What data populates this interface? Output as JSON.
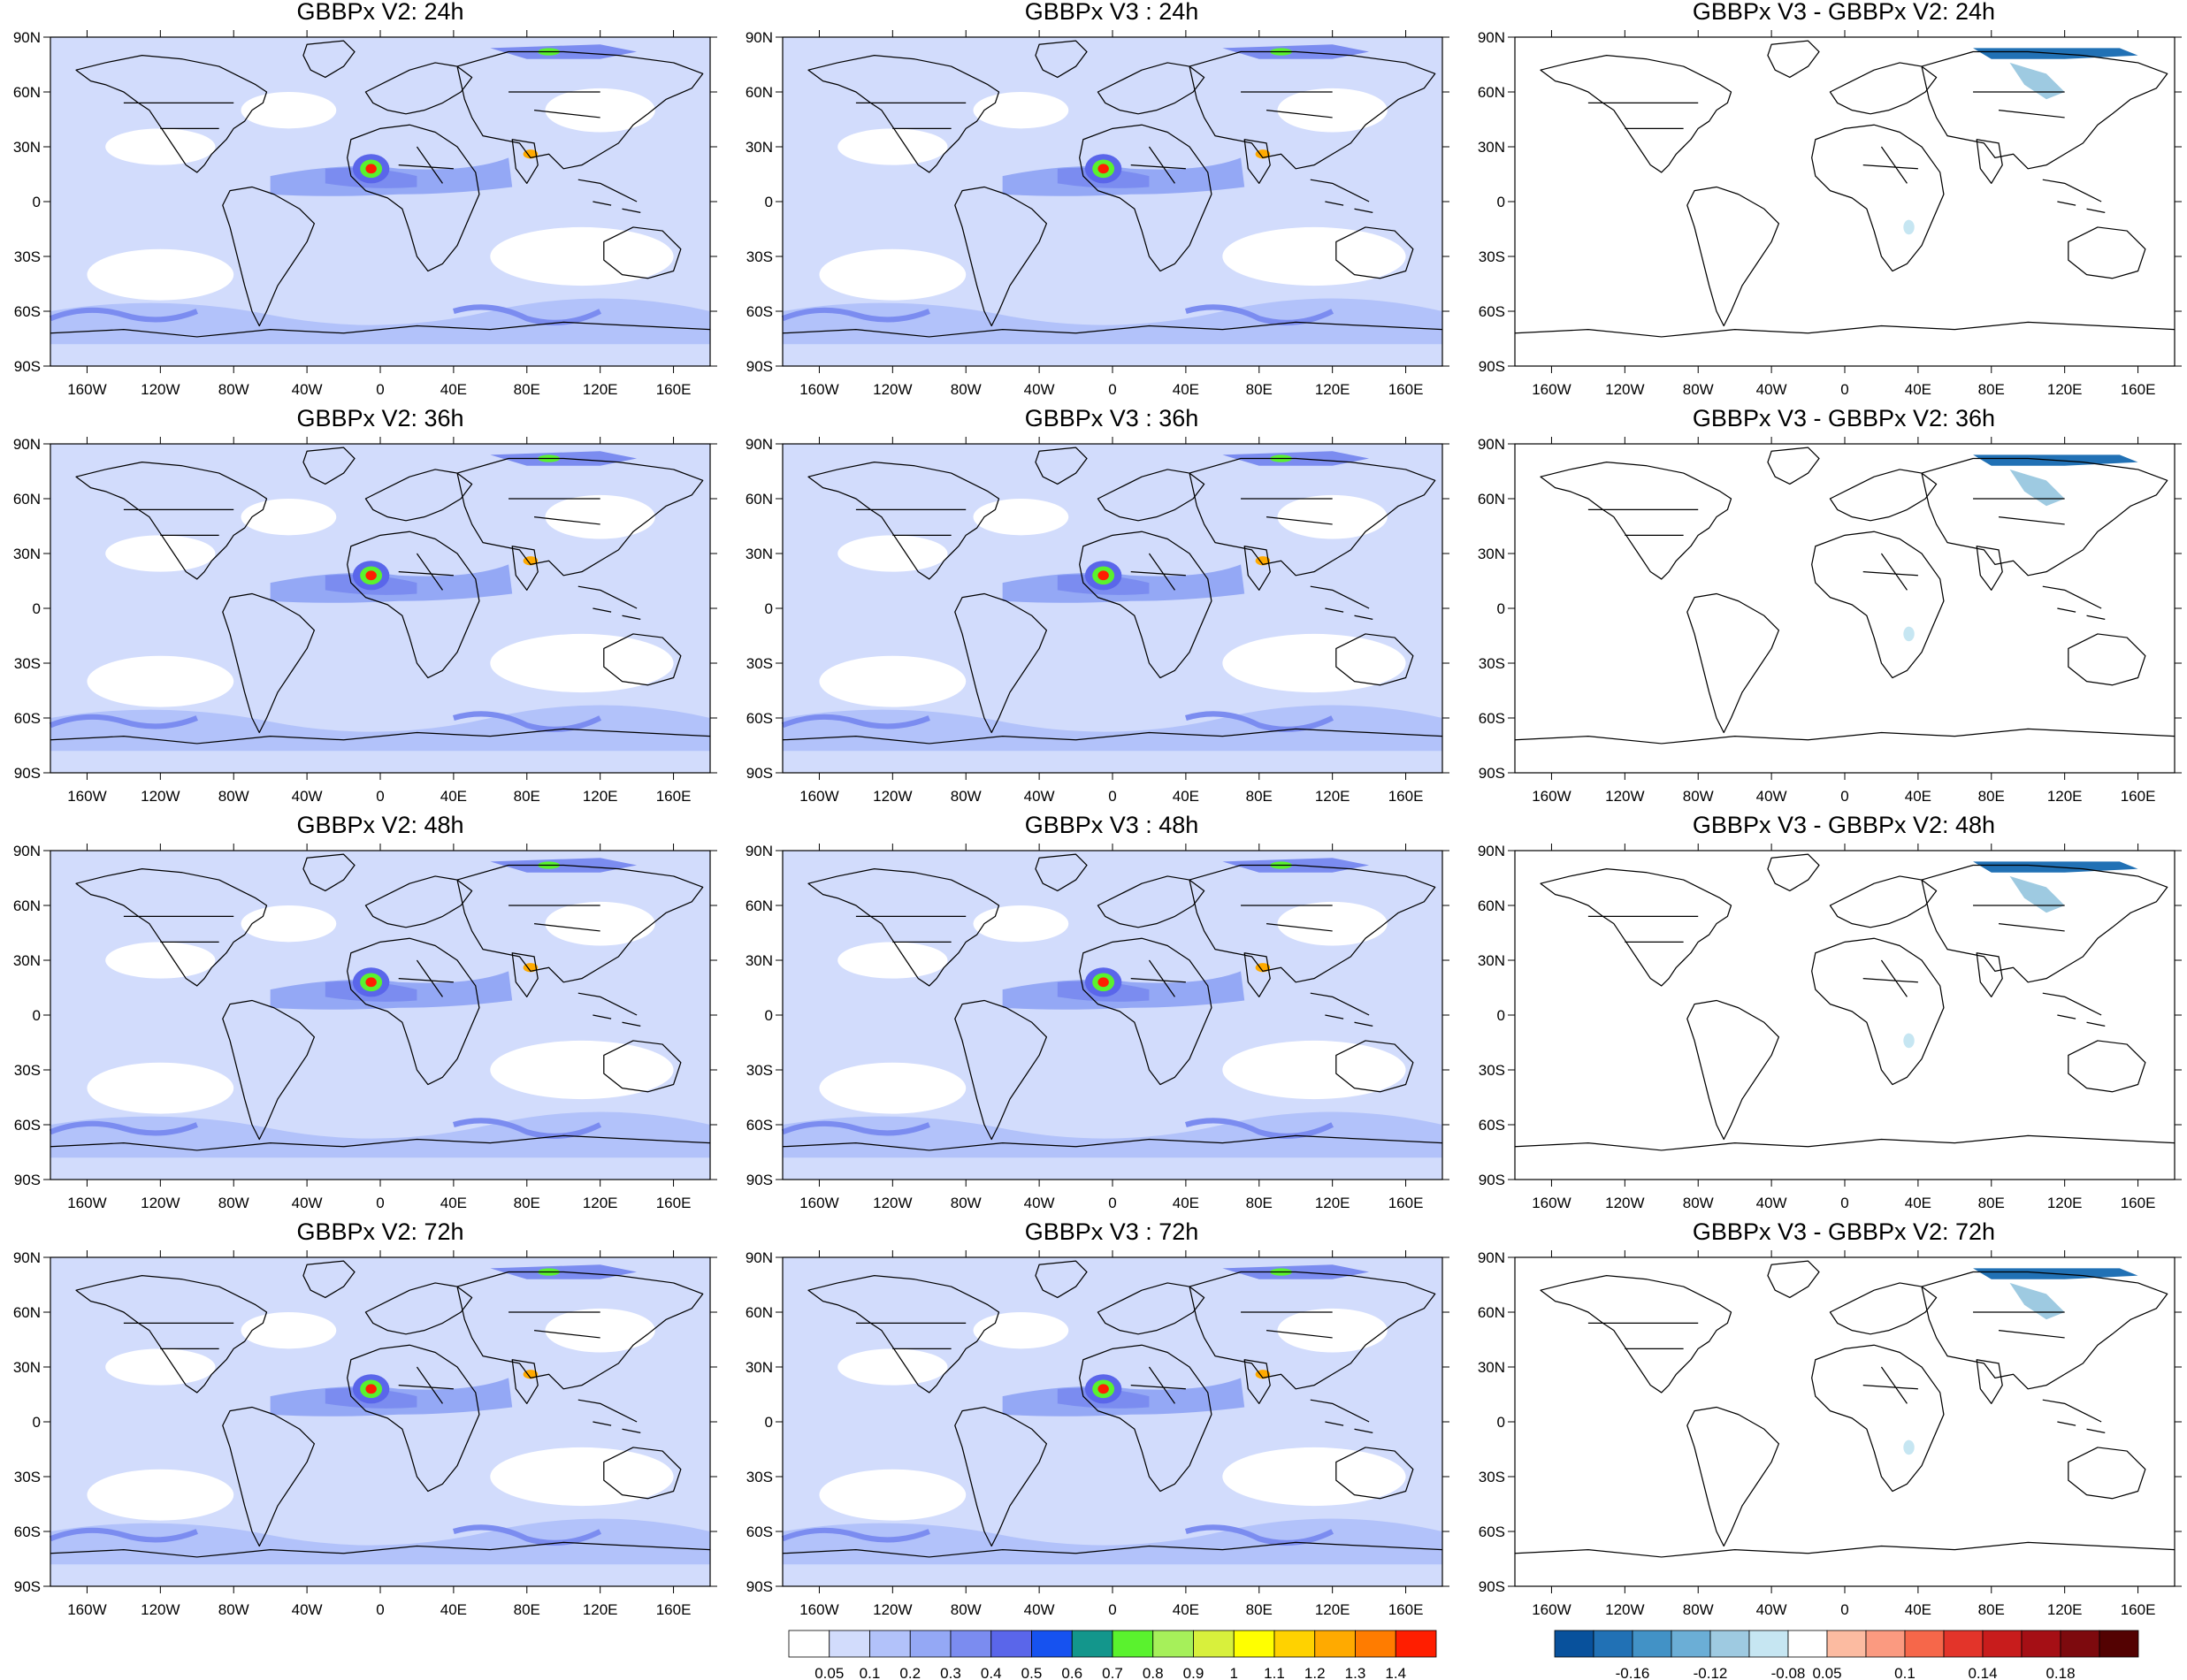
{
  "figure": {
    "columns": [
      {
        "id": "v2",
        "kind": "field"
      },
      {
        "id": "v3",
        "kind": "field"
      },
      {
        "id": "diff",
        "kind": "difference"
      }
    ],
    "rows": [
      {
        "titles": [
          "GBBPx V2: 24h",
          "GBBPx V3 : 24h",
          "GBBPx V3 - GBBPx V2: 24h"
        ]
      },
      {
        "titles": [
          "GBBPx V2: 36h",
          "GBBPx V3 : 36h",
          "GBBPx V3 - GBBPx V2: 36h"
        ]
      },
      {
        "titles": [
          "GBBPx V2: 48h",
          "GBBPx V3 : 48h",
          "GBBPx V3 - GBBPx V2: 48h"
        ]
      },
      {
        "titles": [
          "GBBPx V2: 72h",
          "GBBPx V3 : 72h",
          "GBBPx V3 - GBBPx V2: 72h"
        ]
      }
    ],
    "lat_ticks": [
      "90N",
      "60N",
      "30N",
      "0",
      "30S",
      "60S",
      "90S"
    ],
    "lon_ticks": [
      "160W",
      "120W",
      "80W",
      "40W",
      "0",
      "40E",
      "80E",
      "120E",
      "160E"
    ],
    "projection": "cylindrical-equidistant",
    "extent": {
      "lon": [
        -180,
        180
      ],
      "lat": [
        -90,
        90
      ]
    }
  },
  "colorbars": {
    "field": {
      "labels": [
        "0.05",
        "0.1",
        "0.2",
        "0.3",
        "0.4",
        "0.5",
        "0.6",
        "0.7",
        "0.8",
        "0.9",
        "1",
        "1.1",
        "1.2",
        "1.3",
        "1.4"
      ],
      "colors": [
        "#ffffff",
        "#d2dcfc",
        "#b2c2fa",
        "#94a8f5",
        "#7b8cf0",
        "#5a66ea",
        "#1652f0",
        "#13968c",
        "#5af22e",
        "#a6f05a",
        "#d8f03c",
        "#ffff00",
        "#ffd200",
        "#ffaa00",
        "#ff7c00",
        "#ff1e00"
      ]
    },
    "difference": {
      "labels": [
        "-0.16",
        "-0.12",
        "-0.08",
        "0.05",
        "0.1",
        "0.14",
        "0.18"
      ],
      "colors": [
        "#08519c",
        "#2171b5",
        "#4292c6",
        "#6baed6",
        "#9ecae1",
        "#c6e6f2",
        "#ffffff",
        "#fcbba1",
        "#fb9a80",
        "#f6674a",
        "#e3342a",
        "#c81c1c",
        "#a50f15",
        "#7d0a0e",
        "#530202"
      ]
    }
  },
  "landmarks": {
    "plume_west_africa": {
      "lon": -5,
      "lat": 18,
      "value": 1.4
    },
    "north_india_plume": {
      "lon": 80,
      "lat": 30,
      "value": 1.1
    },
    "siberia_belt": {
      "lon": 100,
      "lat": 75,
      "value": 0.5
    },
    "southern_ocean_eddies": {
      "lat": -55,
      "value": 0.3
    }
  }
}
